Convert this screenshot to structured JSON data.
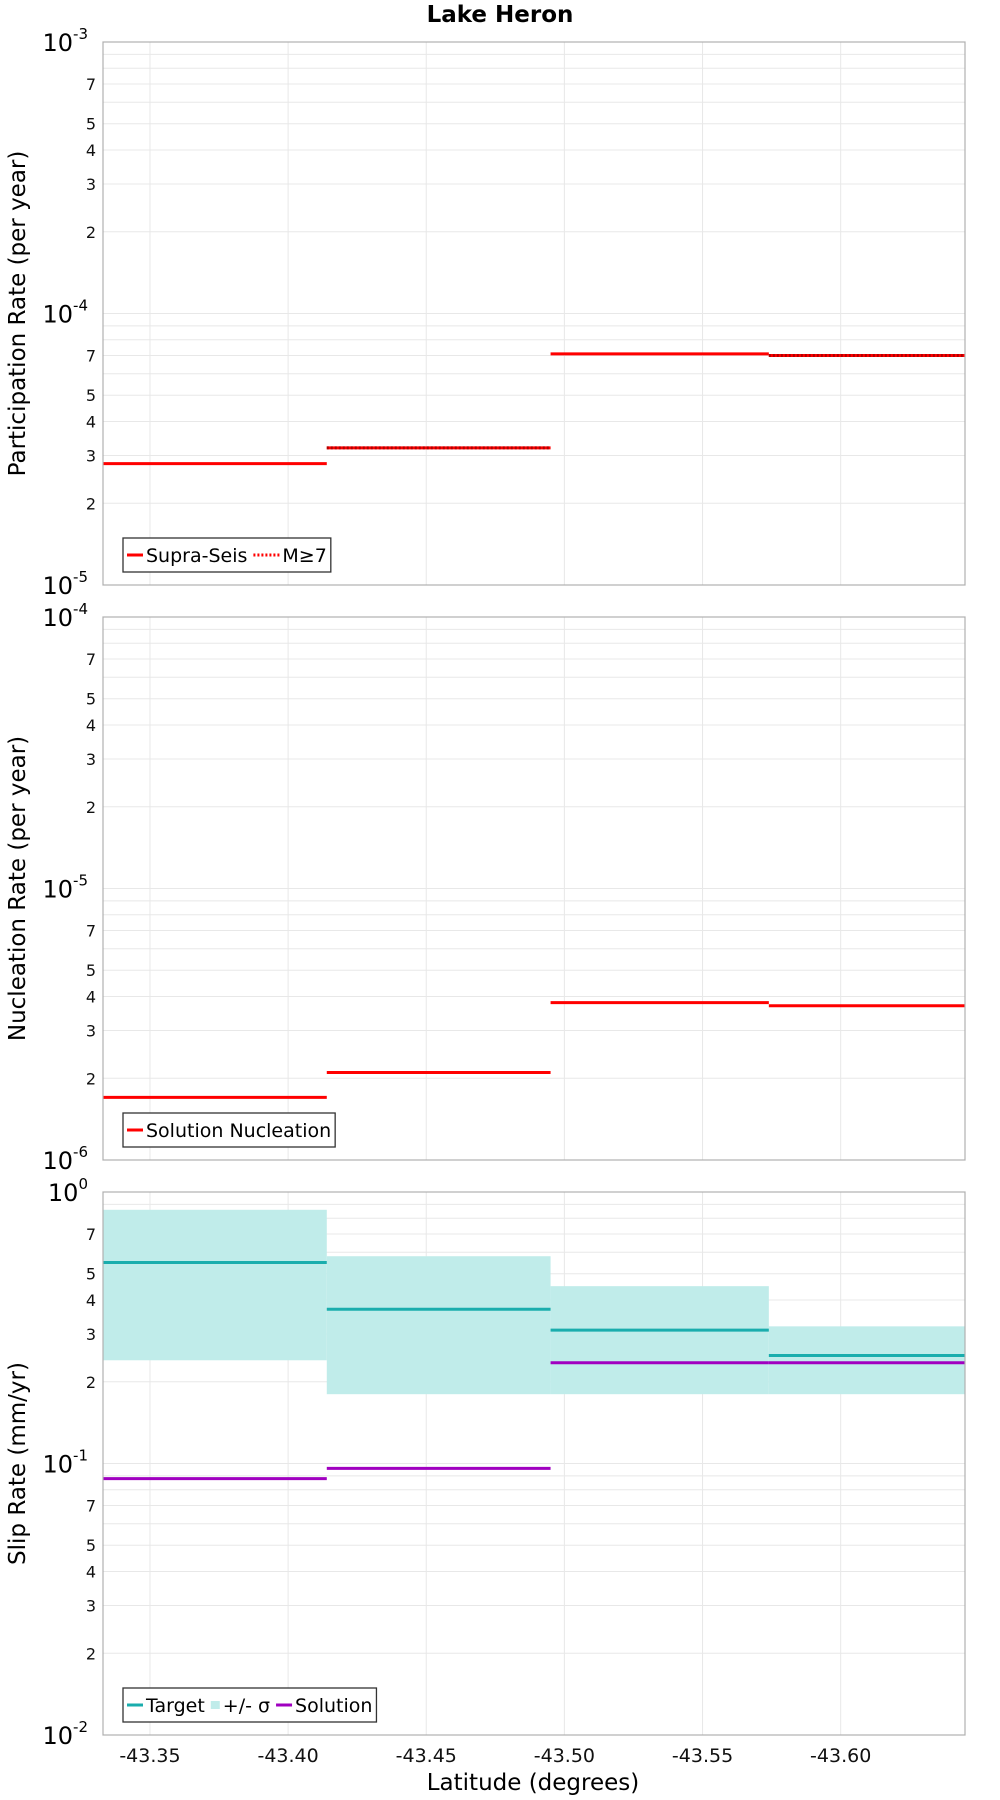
{
  "chart_data": [
    {
      "type": "line",
      "panel": "participation",
      "title": "Lake Heron",
      "ylabel": "Participation Rate (per year)",
      "y_scale": "log",
      "ylim": [
        1e-05,
        0.001
      ],
      "y_major_ticks": [
        {
          "base": "10",
          "exp": "-3"
        },
        {
          "base": "10",
          "exp": "-4"
        },
        {
          "base": "10",
          "exp": "-5"
        }
      ],
      "y_minor_ticks": [
        "7",
        "5",
        "4",
        "3",
        "2"
      ],
      "xlim": [
        -43.333,
        -43.645
      ],
      "grid": true,
      "legend_position": "bottom-left",
      "series": [
        {
          "name": "Supra-Seis",
          "color": "#ff0000",
          "style": "solid",
          "segments": [
            {
              "x": [
                -43.333,
                -43.414
              ],
              "y": 2.8e-05
            },
            {
              "x": [
                -43.414,
                -43.495
              ],
              "y": 3.2e-05
            },
            {
              "x": [
                -43.495,
                -43.574
              ],
              "y": 7.1e-05
            },
            {
              "x": [
                -43.574,
                -43.645
              ],
              "y": 7e-05
            }
          ]
        },
        {
          "name": "M≥7",
          "color": "#ff0000",
          "style": "dotted",
          "segments": [
            {
              "x": [
                -43.414,
                -43.495
              ],
              "y": 3.2e-05
            },
            {
              "x": [
                -43.574,
                -43.645
              ],
              "y": 7e-05
            }
          ]
        }
      ]
    },
    {
      "type": "line",
      "panel": "nucleation",
      "ylabel": "Nucleation Rate (per year)",
      "y_scale": "log",
      "ylim": [
        1e-06,
        0.0001
      ],
      "y_major_ticks": [
        {
          "base": "10",
          "exp": "-4"
        },
        {
          "base": "10",
          "exp": "-5"
        },
        {
          "base": "10",
          "exp": "-6"
        }
      ],
      "y_minor_ticks": [
        "7",
        "5",
        "4",
        "3",
        "2"
      ],
      "xlim": [
        -43.333,
        -43.645
      ],
      "grid": true,
      "legend_position": "bottom-left",
      "series": [
        {
          "name": "Solution Nucleation",
          "color": "#ff0000",
          "style": "solid",
          "segments": [
            {
              "x": [
                -43.333,
                -43.414
              ],
              "y": 1.7e-06
            },
            {
              "x": [
                -43.414,
                -43.495
              ],
              "y": 2.1e-06
            },
            {
              "x": [
                -43.495,
                -43.574
              ],
              "y": 3.8e-06
            },
            {
              "x": [
                -43.574,
                -43.645
              ],
              "y": 3.7e-06
            }
          ]
        }
      ]
    },
    {
      "type": "line",
      "panel": "slip",
      "ylabel": "Slip Rate (mm/yr)",
      "xlabel": "Latitude (degrees)",
      "y_scale": "log",
      "ylim": [
        0.01,
        1
      ],
      "y_major_ticks": [
        {
          "base": "10",
          "exp": "0"
        },
        {
          "base": "10",
          "exp": "-1"
        },
        {
          "base": "10",
          "exp": "-2"
        }
      ],
      "y_minor_ticks": [
        "7",
        "5",
        "4",
        "3",
        "2"
      ],
      "xlim": [
        -43.333,
        -43.645
      ],
      "x_ticks": [
        "-43.35",
        "-43.40",
        "-43.45",
        "-43.50",
        "-43.55",
        "-43.60"
      ],
      "x_tick_values": [
        -43.35,
        -43.4,
        -43.45,
        -43.5,
        -43.55,
        -43.6
      ],
      "grid": true,
      "legend_position": "bottom-left",
      "bands": [
        {
          "name": "+/- σ",
          "color": "#c0ecea",
          "segments": [
            {
              "x": [
                -43.333,
                -43.414
              ],
              "low": 0.24,
              "high": 0.86
            },
            {
              "x": [
                -43.414,
                -43.495
              ],
              "low": 0.18,
              "high": 0.58
            },
            {
              "x": [
                -43.495,
                -43.574
              ],
              "low": 0.18,
              "high": 0.45
            },
            {
              "x": [
                -43.574,
                -43.645
              ],
              "low": 0.18,
              "high": 0.32
            }
          ]
        }
      ],
      "series": [
        {
          "name": "Target",
          "color": "#1aadad",
          "style": "solid",
          "segments": [
            {
              "x": [
                -43.333,
                -43.414
              ],
              "y": 0.55
            },
            {
              "x": [
                -43.414,
                -43.495
              ],
              "y": 0.37
            },
            {
              "x": [
                -43.495,
                -43.574
              ],
              "y": 0.31
            },
            {
              "x": [
                -43.574,
                -43.645
              ],
              "y": 0.25
            }
          ]
        },
        {
          "name": "Solution",
          "color": "#a000c0",
          "style": "solid",
          "segments": [
            {
              "x": [
                -43.333,
                -43.414
              ],
              "y": 0.088
            },
            {
              "x": [
                -43.414,
                -43.495
              ],
              "y": 0.096
            },
            {
              "x": [
                -43.495,
                -43.574
              ],
              "y": 0.235
            },
            {
              "x": [
                -43.574,
                -43.645
              ],
              "y": 0.235
            }
          ]
        }
      ]
    }
  ]
}
